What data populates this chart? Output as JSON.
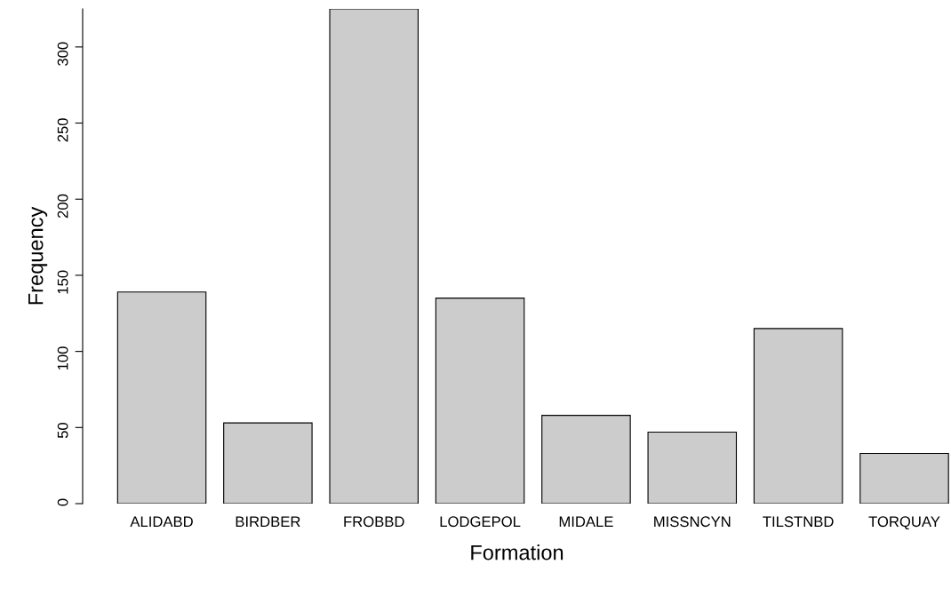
{
  "chart_data": {
    "type": "bar",
    "xlabel": "Formation",
    "ylabel": "Frequency",
    "categories": [
      "ALIDABD",
      "BIRDBER",
      "FROBBD",
      "LODGEPOL",
      "MIDALE",
      "MISSNCYN",
      "TILSTNBD",
      "TORQUAY"
    ],
    "values": [
      139,
      53,
      325,
      135,
      58,
      47,
      115,
      33
    ],
    "color": "#cccccc",
    "ylim": [
      0,
      325
    ],
    "yticks": [
      0,
      50,
      100,
      150,
      200,
      250,
      300
    ],
    "grid": false
  }
}
